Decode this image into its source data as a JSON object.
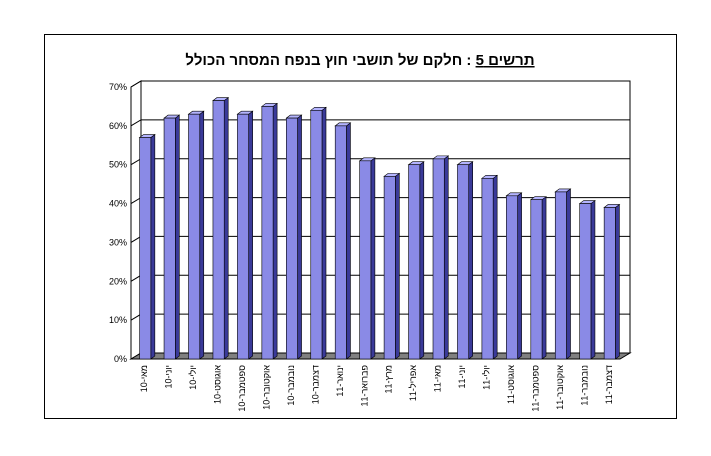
{
  "chart_data": {
    "type": "bar",
    "title_label": "תרשים 5",
    "title_sep": " : ",
    "title_text": "חלקם של תושבי חוץ בנפח המסחר הכולל",
    "xlabel": "",
    "ylabel": "",
    "ylim": [
      0,
      70
    ],
    "yticks": [
      "0%",
      "10%",
      "20%",
      "30%",
      "40%",
      "50%",
      "60%",
      "70%"
    ],
    "grid": true,
    "legend": "none",
    "categories": [
      "מאי-10",
      "יוני-10",
      "יולי-10",
      "אוגוסט-10",
      "ספטמבר-10",
      "אוקטובר-10",
      "נובמבר-10",
      "דצמבר-10",
      "ינואר-11",
      "פברואר-11",
      "מרץ-11",
      "אפריל-11",
      "מאי-11",
      "יוני-11",
      "יולי-11",
      "אוגוסט-11",
      "ספטמבר-11",
      "אוקטובר-11",
      "נובמבר-11",
      "דצמבר-11"
    ],
    "values": [
      57,
      62,
      63,
      66.5,
      63,
      65,
      62,
      64,
      60,
      51,
      47,
      50,
      51.5,
      50,
      46.5,
      42,
      41,
      43,
      40,
      39
    ]
  },
  "colors": {
    "bar_front": "#8a8ae6",
    "bar_top": "#b4b4ff",
    "bar_side": "#3a3a99",
    "floor": "#808080",
    "grid": "#000000"
  }
}
